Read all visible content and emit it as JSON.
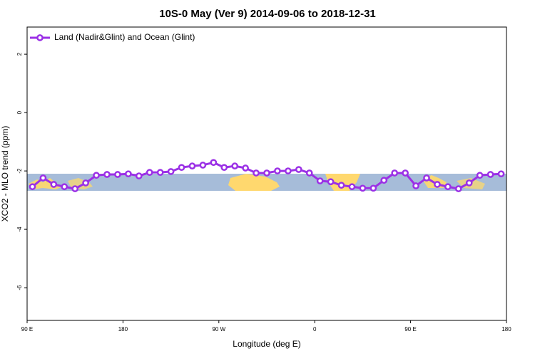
{
  "chart_data": {
    "type": "line",
    "title": "10S-0 May (Ver 9)   2014-09-06 to 2018-12-31",
    "x_label": "Longitude (deg E)",
    "y_label": "XCO2 - MLO trend (ppm)",
    "x": [
      95,
      105,
      115,
      125,
      135,
      145,
      155,
      165,
      175,
      185,
      195,
      205,
      215,
      225,
      235,
      245,
      255,
      265,
      275,
      285,
      295,
      305,
      315,
      325,
      335,
      345,
      355,
      365,
      375,
      385,
      395,
      405,
      415,
      425,
      435,
      445,
      455,
      465,
      475,
      485,
      495,
      505,
      515,
      525,
      535
    ],
    "series": [
      {
        "name": "Land (Nadir&Glint) and Ocean (Glint)",
        "color": "#9b30e6",
        "values": [
          -2.54,
          -2.24,
          -2.46,
          -2.54,
          -2.61,
          -2.41,
          -2.15,
          -2.12,
          -2.12,
          -2.1,
          -2.17,
          -2.05,
          -2.05,
          -2.02,
          -1.88,
          -1.83,
          -1.8,
          -1.71,
          -1.88,
          -1.83,
          -1.9,
          -2.07,
          -2.07,
          -2.0,
          -2.0,
          -1.95,
          -2.07,
          -2.34,
          -2.37,
          -2.49,
          -2.54,
          -2.59,
          -2.59,
          -2.32,
          -2.07,
          -2.07,
          -2.51,
          -2.24,
          -2.46,
          -2.54,
          -2.61,
          -2.41,
          -2.15,
          -2.12,
          -2.1
        ]
      }
    ],
    "xlim": [
      90,
      540
    ],
    "xticks": [
      {
        "value": 90,
        "label": "90 E"
      },
      {
        "value": 180,
        "label": "180"
      },
      {
        "value": 270,
        "label": "90 W"
      },
      {
        "value": 360,
        "label": "0"
      },
      {
        "value": 450,
        "label": "90 E"
      },
      {
        "value": 540,
        "label": "180"
      }
    ],
    "ylim": [
      -7.12,
      2.93
    ],
    "yticks": [
      2,
      0,
      -2,
      -4,
      -6
    ],
    "legend": "upper left"
  }
}
